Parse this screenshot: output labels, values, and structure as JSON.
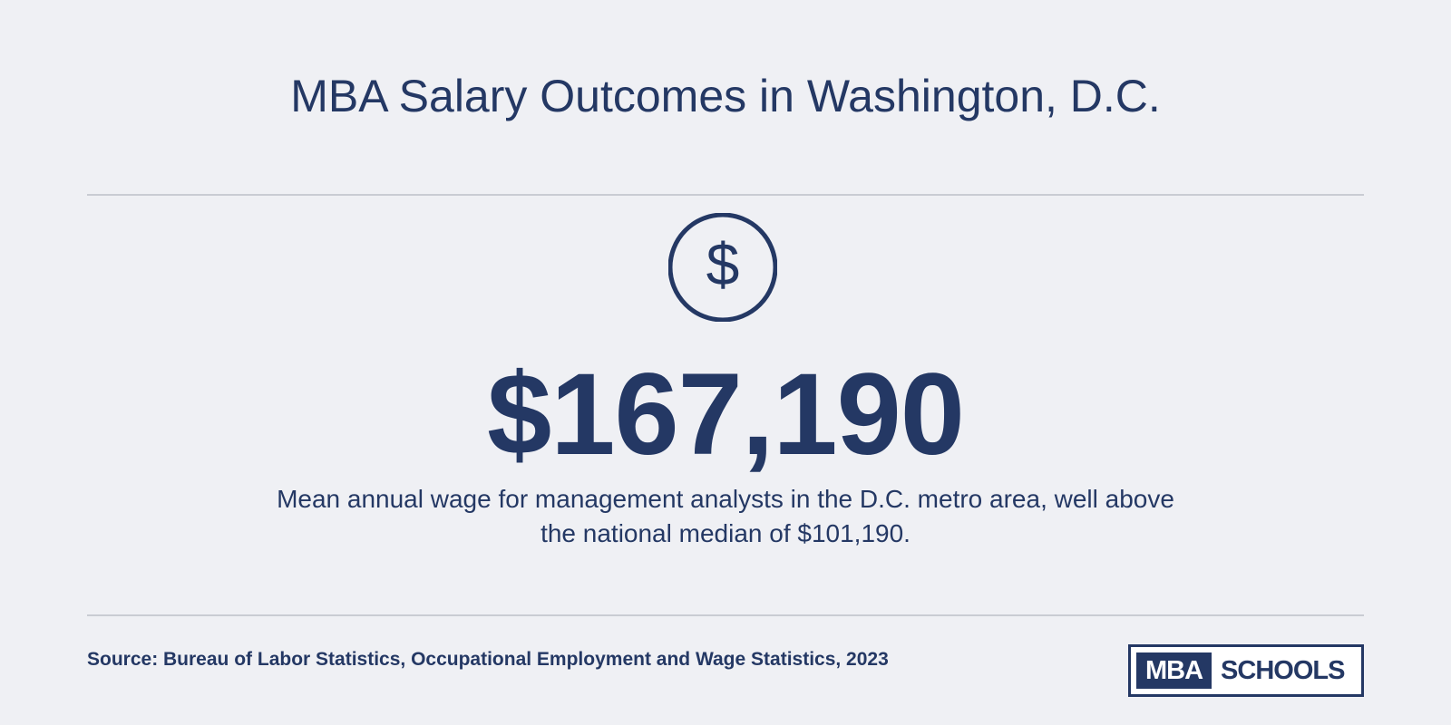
{
  "header": {
    "title": "MBA Salary Outcomes in Washington, D.C."
  },
  "stat": {
    "icon": "dollar-circle-icon",
    "icon_glyph": "$",
    "value": "$167,190",
    "description": "Mean annual wage for management analysts in the D.C. metro area, well above the national median of $101,190."
  },
  "footer": {
    "source": "Source: Bureau of Labor Statistics, Occupational Employment and Wage Statistics, 2023",
    "logo": {
      "part1": "MBA",
      "part2": "SCHOOLS"
    }
  },
  "colors": {
    "background": "#eff0f4",
    "primary": "#243864",
    "rule": "#c9ccd3"
  }
}
